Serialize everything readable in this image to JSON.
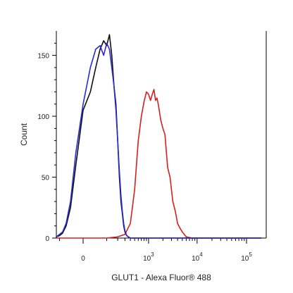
{
  "chart_data": {
    "type": "line",
    "title": "",
    "xlabel": "GLUT1 - Alexa Fluor® 488",
    "ylabel": "Count",
    "x_scale": "biexponential",
    "ylim": [
      0,
      170
    ],
    "y_ticks": [
      0,
      50,
      100,
      150
    ],
    "x_tick_labels": [
      {
        "base": "0",
        "exp": "",
        "value": 0
      },
      {
        "base": "10",
        "exp": "3",
        "value": 1000
      },
      {
        "base": "10",
        "exp": "4",
        "value": 10000
      },
      {
        "base": "10",
        "exp": "5",
        "value": 100000
      }
    ],
    "grid": false,
    "legend": "none",
    "series": [
      {
        "color": "#d42020",
        "x": [
          -200,
          0,
          100,
          200,
          300,
          400,
          500,
          600,
          700,
          800,
          900,
          1000,
          1100,
          1200,
          1300,
          1400,
          1500,
          1600,
          1800,
          2000,
          2200,
          2500,
          2800,
          3200,
          3600,
          4000,
          4500,
          5000,
          6000,
          8000,
          10000,
          20000,
          50000,
          100000,
          200000
        ],
        "y": [
          0,
          0,
          0,
          1,
          3,
          12,
          40,
          80,
          100,
          112,
          120,
          118,
          113,
          118,
          122,
          113,
          115,
          110,
          97,
          90,
          85,
          58,
          50,
          30,
          22,
          12,
          8,
          5,
          1,
          0,
          0,
          0,
          0,
          0,
          0
        ]
      },
      {
        "color": "#111111",
        "x": [
          -200,
          -150,
          -100,
          -80,
          -60,
          -40,
          -20,
          0,
          20,
          40,
          60,
          80,
          100,
          120,
          140,
          160,
          180,
          200,
          220,
          240,
          260,
          280,
          300,
          330,
          360,
          400,
          500,
          1000,
          10000,
          200000
        ],
        "y": [
          0,
          1,
          2,
          4,
          10,
          25,
          60,
          105,
          120,
          140,
          155,
          162,
          158,
          167,
          150,
          125,
          110,
          80,
          50,
          30,
          20,
          10,
          5,
          2,
          1,
          0,
          0,
          0,
          0,
          0
        ]
      },
      {
        "color": "#2a2ad0",
        "x": [
          -200,
          -150,
          -100,
          -80,
          -60,
          -40,
          -20,
          0,
          20,
          40,
          60,
          80,
          100,
          120,
          140,
          160,
          180,
          200,
          220,
          240,
          260,
          280,
          300,
          330,
          360,
          400,
          500,
          1000,
          10000,
          200000
        ],
        "y": [
          0,
          1,
          3,
          5,
          12,
          30,
          70,
          110,
          140,
          155,
          158,
          150,
          160,
          155,
          140,
          125,
          105,
          80,
          55,
          35,
          22,
          12,
          6,
          2,
          1,
          0,
          0,
          0,
          0,
          0
        ]
      }
    ]
  }
}
